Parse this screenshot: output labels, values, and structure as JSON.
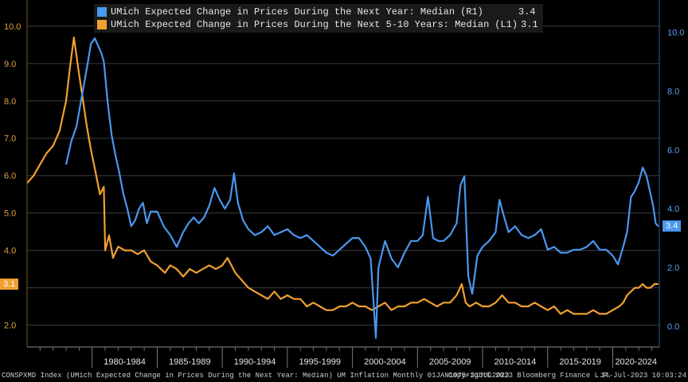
{
  "chart_data": {
    "type": "line",
    "x_range": [
      "1975-01",
      "2023-07"
    ],
    "x_tick_labels": [
      "1980-1984",
      "1985-1989",
      "1990-1994",
      "1995-1999",
      "2000-2004",
      "2005-2009",
      "2010-2014",
      "2015-2019",
      "2020-2024"
    ],
    "left_axis": {
      "ticks": [
        "2.0",
        "3.0",
        "4.0",
        "5.0",
        "6.0",
        "7.0",
        "8.0",
        "9.0",
        "10.0"
      ],
      "ylim": [
        1.5,
        10.7
      ]
    },
    "right_axis": {
      "ticks": [
        "0.0",
        "2.0",
        "4.0",
        "6.0",
        "8.0",
        "10.0"
      ],
      "ylim": [
        -0.6,
        11.1
      ]
    },
    "grid": true,
    "legend_position": "top-left",
    "series": [
      {
        "name": "UMich Expected Change in Prices During the Next Year: Median",
        "axis_tag": "(R1)",
        "axis": "right",
        "color": "#4a97ef",
        "last_value": "3.4",
        "points": [
          [
            1978.0,
            5.5
          ],
          [
            1978.4,
            6.3
          ],
          [
            1978.8,
            6.8
          ],
          [
            1979.2,
            7.8
          ],
          [
            1979.6,
            8.8
          ],
          [
            1979.9,
            9.6
          ],
          [
            1980.2,
            9.8
          ],
          [
            1980.4,
            9.6
          ],
          [
            1980.7,
            9.3
          ],
          [
            1980.9,
            9.0
          ],
          [
            1981.2,
            7.6
          ],
          [
            1981.5,
            6.5
          ],
          [
            1981.8,
            5.8
          ],
          [
            1982.1,
            5.2
          ],
          [
            1982.4,
            4.5
          ],
          [
            1982.7,
            4.0
          ],
          [
            1983.0,
            3.4
          ],
          [
            1983.3,
            3.6
          ],
          [
            1983.6,
            4.0
          ],
          [
            1983.9,
            4.2
          ],
          [
            1984.2,
            3.5
          ],
          [
            1984.5,
            3.9
          ],
          [
            1985.0,
            3.9
          ],
          [
            1985.5,
            3.4
          ],
          [
            1986.0,
            3.1
          ],
          [
            1986.5,
            2.7
          ],
          [
            1987.0,
            3.2
          ],
          [
            1987.4,
            3.5
          ],
          [
            1987.8,
            3.7
          ],
          [
            1988.2,
            3.5
          ],
          [
            1988.6,
            3.7
          ],
          [
            1989.0,
            4.1
          ],
          [
            1989.4,
            4.7
          ],
          [
            1989.8,
            4.3
          ],
          [
            1990.2,
            4.0
          ],
          [
            1990.6,
            4.3
          ],
          [
            1990.9,
            5.2
          ],
          [
            1991.2,
            4.2
          ],
          [
            1991.6,
            3.6
          ],
          [
            1992.0,
            3.3
          ],
          [
            1992.5,
            3.1
          ],
          [
            1993.0,
            3.2
          ],
          [
            1993.5,
            3.4
          ],
          [
            1994.0,
            3.1
          ],
          [
            1994.5,
            3.2
          ],
          [
            1995.0,
            3.3
          ],
          [
            1995.5,
            3.1
          ],
          [
            1996.0,
            3.0
          ],
          [
            1996.5,
            3.1
          ],
          [
            1997.0,
            2.9
          ],
          [
            1997.5,
            2.7
          ],
          [
            1998.0,
            2.5
          ],
          [
            1998.5,
            2.4
          ],
          [
            1999.0,
            2.6
          ],
          [
            1999.5,
            2.8
          ],
          [
            2000.0,
            3.0
          ],
          [
            2000.5,
            3.0
          ],
          [
            2001.0,
            2.7
          ],
          [
            2001.4,
            2.3
          ],
          [
            2001.8,
            -0.4
          ],
          [
            2002.0,
            2.0
          ],
          [
            2002.5,
            2.9
          ],
          [
            2003.0,
            2.3
          ],
          [
            2003.5,
            2.0
          ],
          [
            2004.0,
            2.5
          ],
          [
            2004.5,
            2.9
          ],
          [
            2005.0,
            2.9
          ],
          [
            2005.4,
            3.1
          ],
          [
            2005.8,
            4.4
          ],
          [
            2006.2,
            3.0
          ],
          [
            2006.6,
            2.9
          ],
          [
            2007.0,
            2.9
          ],
          [
            2007.5,
            3.1
          ],
          [
            2008.0,
            3.5
          ],
          [
            2008.3,
            4.8
          ],
          [
            2008.6,
            5.1
          ],
          [
            2008.9,
            1.7
          ],
          [
            2009.2,
            1.1
          ],
          [
            2009.6,
            2.4
          ],
          [
            2010.0,
            2.7
          ],
          [
            2010.5,
            2.9
          ],
          [
            2011.0,
            3.2
          ],
          [
            2011.3,
            4.3
          ],
          [
            2011.6,
            3.8
          ],
          [
            2012.0,
            3.2
          ],
          [
            2012.5,
            3.4
          ],
          [
            2013.0,
            3.1
          ],
          [
            2013.5,
            3.0
          ],
          [
            2014.0,
            3.1
          ],
          [
            2014.5,
            3.3
          ],
          [
            2015.0,
            2.6
          ],
          [
            2015.5,
            2.7
          ],
          [
            2016.0,
            2.5
          ],
          [
            2016.5,
            2.5
          ],
          [
            2017.0,
            2.6
          ],
          [
            2017.5,
            2.6
          ],
          [
            2018.0,
            2.7
          ],
          [
            2018.5,
            2.9
          ],
          [
            2019.0,
            2.6
          ],
          [
            2019.5,
            2.6
          ],
          [
            2020.0,
            2.4
          ],
          [
            2020.4,
            2.1
          ],
          [
            2020.8,
            2.7
          ],
          [
            2021.1,
            3.2
          ],
          [
            2021.4,
            4.4
          ],
          [
            2021.7,
            4.6
          ],
          [
            2022.0,
            4.9
          ],
          [
            2022.3,
            5.4
          ],
          [
            2022.6,
            5.1
          ],
          [
            2022.9,
            4.5
          ],
          [
            2023.1,
            4.1
          ],
          [
            2023.3,
            3.5
          ],
          [
            2023.5,
            3.4
          ]
        ]
      },
      {
        "name": "UMich Expected Change in Prices During the Next 5-10 Years: Median",
        "axis_tag": "(L1)",
        "axis": "left",
        "color": "#f0a030",
        "last_value": "3.1",
        "points": [
          [
            1975.0,
            5.8
          ],
          [
            1975.5,
            6.0
          ],
          [
            1976.0,
            6.3
          ],
          [
            1976.5,
            6.6
          ],
          [
            1977.0,
            6.8
          ],
          [
            1977.5,
            7.2
          ],
          [
            1978.0,
            8.0
          ],
          [
            1978.3,
            8.9
          ],
          [
            1978.6,
            9.7
          ],
          [
            1978.8,
            9.2
          ],
          [
            1979.0,
            8.7
          ],
          [
            1979.3,
            8.0
          ],
          [
            1979.6,
            7.3
          ],
          [
            1979.9,
            6.7
          ],
          [
            1980.2,
            6.2
          ],
          [
            1980.6,
            5.5
          ],
          [
            1980.9,
            5.7
          ],
          [
            1981.0,
            4.0
          ],
          [
            1981.3,
            4.4
          ],
          [
            1981.6,
            3.8
          ],
          [
            1982.0,
            4.1
          ],
          [
            1982.5,
            4.0
          ],
          [
            1983.0,
            4.0
          ],
          [
            1983.5,
            3.9
          ],
          [
            1984.0,
            4.0
          ],
          [
            1984.5,
            3.7
          ],
          [
            1985.0,
            3.6
          ],
          [
            1985.6,
            3.4
          ],
          [
            1986.0,
            3.6
          ],
          [
            1986.5,
            3.5
          ],
          [
            1987.0,
            3.3
          ],
          [
            1987.5,
            3.5
          ],
          [
            1988.0,
            3.4
          ],
          [
            1988.5,
            3.5
          ],
          [
            1989.0,
            3.6
          ],
          [
            1989.5,
            3.5
          ],
          [
            1990.0,
            3.6
          ],
          [
            1990.4,
            3.8
          ],
          [
            1990.7,
            3.6
          ],
          [
            1991.0,
            3.4
          ],
          [
            1991.5,
            3.2
          ],
          [
            1992.0,
            3.0
          ],
          [
            1992.5,
            2.9
          ],
          [
            1993.0,
            2.8
          ],
          [
            1993.5,
            2.7
          ],
          [
            1994.0,
            2.9
          ],
          [
            1994.5,
            2.7
          ],
          [
            1995.0,
            2.8
          ],
          [
            1995.5,
            2.7
          ],
          [
            1996.0,
            2.7
          ],
          [
            1996.5,
            2.5
          ],
          [
            1997.0,
            2.6
          ],
          [
            1997.5,
            2.5
          ],
          [
            1998.0,
            2.4
          ],
          [
            1998.5,
            2.4
          ],
          [
            1999.0,
            2.5
          ],
          [
            1999.5,
            2.5
          ],
          [
            2000.0,
            2.6
          ],
          [
            2000.5,
            2.5
          ],
          [
            2001.0,
            2.5
          ],
          [
            2001.5,
            2.4
          ],
          [
            2002.0,
            2.5
          ],
          [
            2002.5,
            2.6
          ],
          [
            2003.0,
            2.4
          ],
          [
            2003.5,
            2.5
          ],
          [
            2004.0,
            2.5
          ],
          [
            2004.5,
            2.6
          ],
          [
            2005.0,
            2.6
          ],
          [
            2005.5,
            2.7
          ],
          [
            2006.0,
            2.6
          ],
          [
            2006.5,
            2.5
          ],
          [
            2007.0,
            2.6
          ],
          [
            2007.5,
            2.6
          ],
          [
            2008.0,
            2.8
          ],
          [
            2008.4,
            3.1
          ],
          [
            2008.7,
            2.6
          ],
          [
            2009.0,
            2.5
          ],
          [
            2009.5,
            2.6
          ],
          [
            2010.0,
            2.5
          ],
          [
            2010.5,
            2.5
          ],
          [
            2011.0,
            2.6
          ],
          [
            2011.5,
            2.8
          ],
          [
            2012.0,
            2.6
          ],
          [
            2012.5,
            2.6
          ],
          [
            2013.0,
            2.5
          ],
          [
            2013.5,
            2.5
          ],
          [
            2014.0,
            2.6
          ],
          [
            2014.5,
            2.5
          ],
          [
            2015.0,
            2.4
          ],
          [
            2015.5,
            2.5
          ],
          [
            2016.0,
            2.3
          ],
          [
            2016.5,
            2.4
          ],
          [
            2017.0,
            2.3
          ],
          [
            2017.5,
            2.3
          ],
          [
            2018.0,
            2.3
          ],
          [
            2018.5,
            2.4
          ],
          [
            2019.0,
            2.3
          ],
          [
            2019.5,
            2.3
          ],
          [
            2020.0,
            2.4
          ],
          [
            2020.5,
            2.5
          ],
          [
            2020.8,
            2.6
          ],
          [
            2021.1,
            2.8
          ],
          [
            2021.4,
            2.9
          ],
          [
            2021.7,
            3.0
          ],
          [
            2022.0,
            3.0
          ],
          [
            2022.3,
            3.1
          ],
          [
            2022.6,
            3.0
          ],
          [
            2022.9,
            3.0
          ],
          [
            2023.2,
            3.1
          ],
          [
            2023.5,
            3.1
          ]
        ]
      }
    ]
  },
  "footer": {
    "left": "CONSPXMD Index (UMich Expected Change in Prices During the Next Year: Median) UM Inflation  Monthly 01JAN1975-31JUL2023",
    "center": "Copyright© 2023 Bloomberg Finance L.P.",
    "right": "14-Jul-2023 10:03:24"
  }
}
